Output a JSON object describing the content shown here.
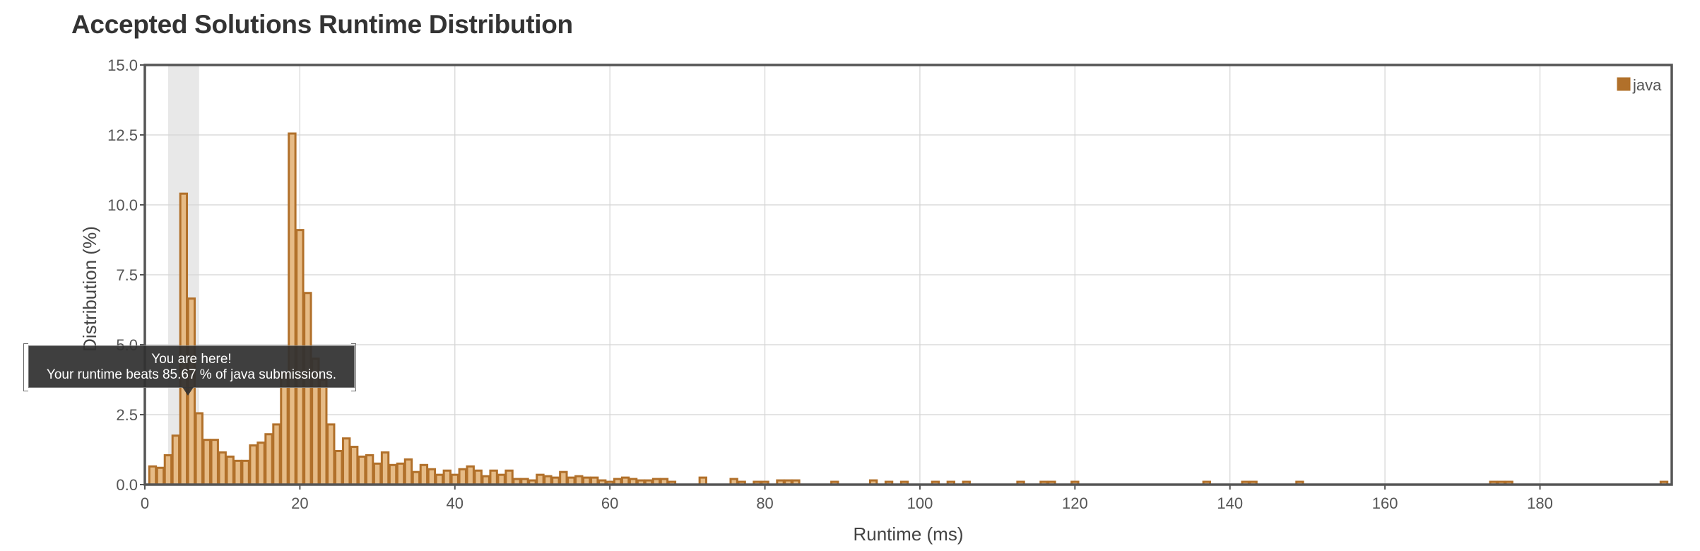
{
  "title": "Accepted Solutions Runtime Distribution",
  "tooltip": {
    "line1": "You are here!",
    "line2": "Your runtime beats 85.67 % of java submissions."
  },
  "colors": {
    "bar_fill": "#e6bb86",
    "bar_stroke": "#b1702a",
    "legend_swatch": "#b1702a",
    "highlight_band": "#e8e8e8",
    "grid": "#d4d4d4",
    "frame": "#555555",
    "text": "#555555"
  },
  "chart_data": {
    "type": "bar",
    "xlabel": "Runtime (ms)",
    "ylabel": "Distribution (%)",
    "xlim": [
      0,
      197
    ],
    "ylim": [
      0,
      15
    ],
    "xticks": [
      "0",
      "20",
      "40",
      "60",
      "80",
      "100",
      "120",
      "140",
      "160",
      "180"
    ],
    "yticks": [
      "0.0",
      "2.5",
      "5.0",
      "7.5",
      "10.0",
      "12.5",
      "15.0"
    ],
    "grid": true,
    "legend_position": "top-right",
    "highlight_range_ms": [
      3,
      7
    ],
    "series": [
      {
        "name": "java",
        "bins": [
          [
            1,
            0.65
          ],
          [
            2,
            0.6
          ],
          [
            3,
            1.05
          ],
          [
            4,
            1.75
          ],
          [
            5,
            10.4
          ],
          [
            6,
            6.65
          ],
          [
            7,
            2.55
          ],
          [
            8,
            1.6
          ],
          [
            9,
            1.6
          ],
          [
            10,
            1.15
          ],
          [
            11,
            1.0
          ],
          [
            12,
            0.85
          ],
          [
            13,
            0.85
          ],
          [
            14,
            1.4
          ],
          [
            15,
            1.5
          ],
          [
            16,
            1.8
          ],
          [
            17,
            2.15
          ],
          [
            18,
            4.0
          ],
          [
            19,
            12.55
          ],
          [
            20,
            9.1
          ],
          [
            21,
            6.85
          ],
          [
            22,
            4.5
          ],
          [
            23,
            3.75
          ],
          [
            24,
            2.15
          ],
          [
            25,
            1.2
          ],
          [
            26,
            1.65
          ],
          [
            27,
            1.35
          ],
          [
            28,
            1.0
          ],
          [
            29,
            1.05
          ],
          [
            30,
            0.75
          ],
          [
            31,
            1.15
          ],
          [
            32,
            0.7
          ],
          [
            33,
            0.75
          ],
          [
            34,
            0.9
          ],
          [
            35,
            0.45
          ],
          [
            36,
            0.7
          ],
          [
            37,
            0.55
          ],
          [
            38,
            0.35
          ],
          [
            39,
            0.5
          ],
          [
            40,
            0.35
          ],
          [
            41,
            0.55
          ],
          [
            42,
            0.65
          ],
          [
            43,
            0.5
          ],
          [
            44,
            0.3
          ],
          [
            45,
            0.5
          ],
          [
            46,
            0.35
          ],
          [
            47,
            0.5
          ],
          [
            48,
            0.2
          ],
          [
            49,
            0.2
          ],
          [
            50,
            0.15
          ],
          [
            51,
            0.35
          ],
          [
            52,
            0.3
          ],
          [
            53,
            0.25
          ],
          [
            54,
            0.45
          ],
          [
            55,
            0.25
          ],
          [
            56,
            0.3
          ],
          [
            57,
            0.25
          ],
          [
            58,
            0.25
          ],
          [
            59,
            0.15
          ],
          [
            60,
            0.1
          ],
          [
            61,
            0.2
          ],
          [
            62,
            0.25
          ],
          [
            63,
            0.2
          ],
          [
            64,
            0.15
          ],
          [
            65,
            0.15
          ],
          [
            66,
            0.2
          ],
          [
            67,
            0.2
          ],
          [
            68,
            0.1
          ],
          [
            72,
            0.25
          ],
          [
            76,
            0.2
          ],
          [
            77,
            0.1
          ],
          [
            79,
            0.1
          ],
          [
            80,
            0.1
          ],
          [
            82,
            0.15
          ],
          [
            83,
            0.15
          ],
          [
            84,
            0.15
          ],
          [
            89,
            0.1
          ],
          [
            94,
            0.15
          ],
          [
            96,
            0.1
          ],
          [
            98,
            0.1
          ],
          [
            102,
            0.1
          ],
          [
            104,
            0.1
          ],
          [
            106,
            0.1
          ],
          [
            113,
            0.1
          ],
          [
            116,
            0.1
          ],
          [
            117,
            0.1
          ],
          [
            120,
            0.1
          ],
          [
            137,
            0.1
          ],
          [
            142,
            0.1
          ],
          [
            143,
            0.1
          ],
          [
            149,
            0.1
          ],
          [
            174,
            0.1
          ],
          [
            175,
            0.1
          ],
          [
            176,
            0.1
          ],
          [
            196,
            0.1
          ]
        ]
      }
    ]
  }
}
